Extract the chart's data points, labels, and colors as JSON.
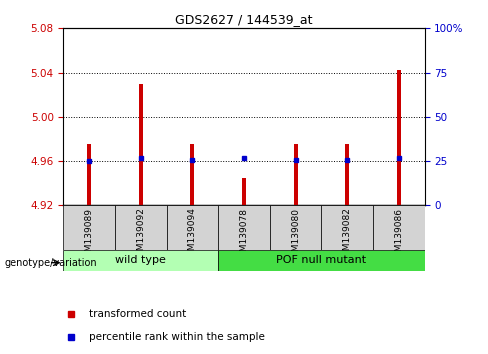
{
  "title": "GDS2627 / 144539_at",
  "samples": [
    "GSM139089",
    "GSM139092",
    "GSM139094",
    "GSM139078",
    "GSM139080",
    "GSM139082",
    "GSM139086"
  ],
  "bar_values": [
    4.975,
    5.03,
    4.975,
    4.945,
    4.975,
    4.975,
    5.042
  ],
  "percentile_values": [
    4.96,
    4.963,
    4.961,
    4.963,
    4.961,
    4.961,
    4.963
  ],
  "bar_bottom": 4.92,
  "ylim_left": [
    4.92,
    5.08
  ],
  "ylim_right": [
    0,
    100
  ],
  "yticks_left": [
    4.92,
    4.96,
    5.0,
    5.04,
    5.08
  ],
  "yticks_right": [
    0,
    25,
    50,
    75,
    100
  ],
  "grid_values": [
    4.96,
    5.0,
    5.04
  ],
  "bar_color": "#cc0000",
  "dot_color": "#0000cc",
  "group1_label": "wild type",
  "group1_indices": [
    0,
    1,
    2
  ],
  "group2_label": "POF null mutant",
  "group2_indices": [
    3,
    4,
    5,
    6
  ],
  "group1_color": "#b3ffb3",
  "group2_color": "#44dd44",
  "group_label_text": "genotype/variation",
  "legend_bar_label": "transformed count",
  "legend_dot_label": "percentile rank within the sample",
  "bar_width": 0.08,
  "sample_area_color": "#d3d3d3",
  "plot_bg": "#ffffff"
}
